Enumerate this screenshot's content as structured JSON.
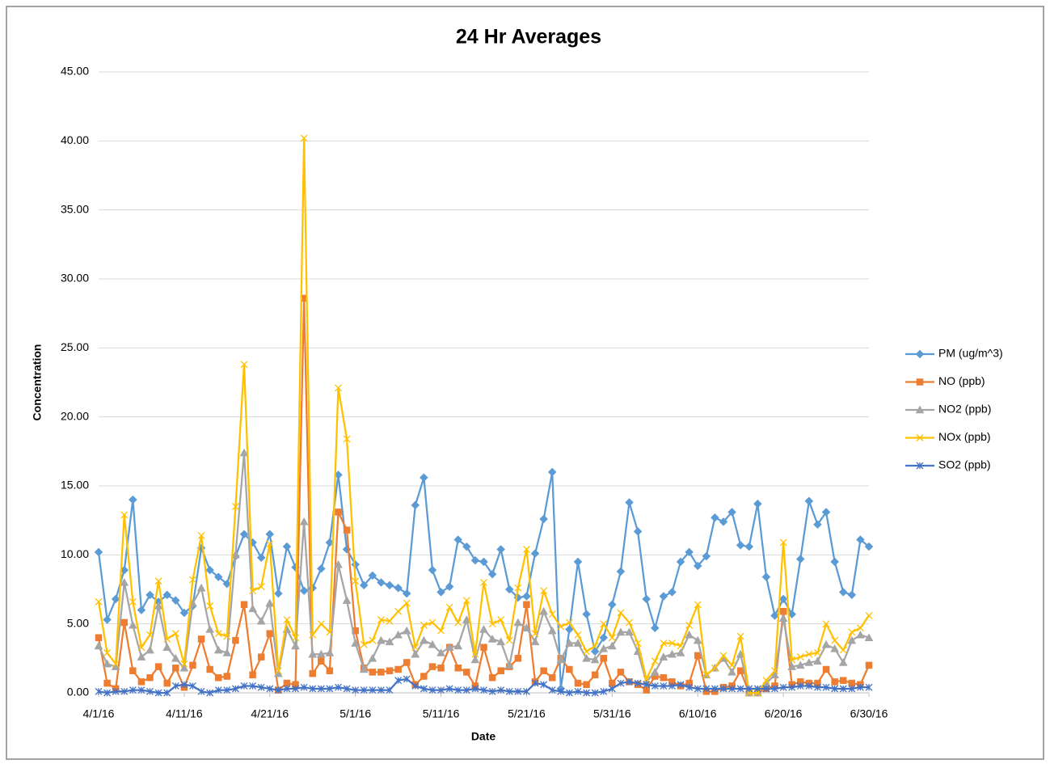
{
  "chart_data": {
    "type": "line",
    "title": "24 Hr Averages",
    "x_label": "Date",
    "y_label": "Concentration",
    "x": [
      "4/1/16",
      "4/2/16",
      "4/3/16",
      "4/4/16",
      "4/5/16",
      "4/6/16",
      "4/7/16",
      "4/8/16",
      "4/9/16",
      "4/10/16",
      "4/11/16",
      "4/12/16",
      "4/13/16",
      "4/14/16",
      "4/15/16",
      "4/16/16",
      "4/17/16",
      "4/18/16",
      "4/19/16",
      "4/20/16",
      "4/21/16",
      "4/22/16",
      "4/23/16",
      "4/24/16",
      "4/25/16",
      "4/26/16",
      "4/27/16",
      "4/28/16",
      "4/29/16",
      "4/30/16",
      "5/1/16",
      "5/2/16",
      "5/3/16",
      "5/4/16",
      "5/5/16",
      "5/6/16",
      "5/7/16",
      "5/8/16",
      "5/9/16",
      "5/10/16",
      "5/11/16",
      "5/12/16",
      "5/13/16",
      "5/14/16",
      "5/15/16",
      "5/16/16",
      "5/17/16",
      "5/18/16",
      "5/19/16",
      "5/20/16",
      "5/21/16",
      "5/22/16",
      "5/23/16",
      "5/24/16",
      "5/25/16",
      "5/26/16",
      "5/27/16",
      "5/28/16",
      "5/29/16",
      "5/30/16",
      "5/31/16",
      "6/1/16",
      "6/2/16",
      "6/3/16",
      "6/4/16",
      "6/5/16",
      "6/6/16",
      "6/7/16",
      "6/8/16",
      "6/9/16",
      "6/10/16",
      "6/11/16",
      "6/12/16",
      "6/13/16",
      "6/14/16",
      "6/15/16",
      "6/16/16",
      "6/17/16",
      "6/18/16",
      "6/19/16",
      "6/20/16",
      "6/21/16",
      "6/22/16",
      "6/23/16",
      "6/24/16",
      "6/25/16",
      "6/26/16",
      "6/27/16",
      "6/28/16",
      "6/29/16",
      "6/30/16"
    ],
    "xlim": [
      "4/1/16",
      "6/30/16"
    ],
    "xticks": [
      "4/1/16",
      "4/11/16",
      "4/21/16",
      "5/1/16",
      "5/11/16",
      "5/21/16",
      "5/31/16",
      "6/10/16",
      "6/20/16",
      "6/30/16"
    ],
    "ylim": [
      0,
      45
    ],
    "yticks": [
      {
        "value": 0,
        "label": "0.00"
      },
      {
        "value": 5,
        "label": "5.00"
      },
      {
        "value": 10,
        "label": "10.00"
      },
      {
        "value": 15,
        "label": "15.00"
      },
      {
        "value": 20,
        "label": "20.00"
      },
      {
        "value": 25,
        "label": "25.00"
      },
      {
        "value": 30,
        "label": "30.00"
      },
      {
        "value": 35,
        "label": "35.00"
      },
      {
        "value": 40,
        "label": "40.00"
      },
      {
        "value": 45,
        "label": "45.00"
      }
    ],
    "grid": true,
    "legend": "right",
    "series": [
      {
        "name": "PM (ug/m^3)",
        "color": "#5B9BD5",
        "marker": "diamond",
        "values": [
          10.2,
          5.3,
          6.8,
          8.9,
          14.0,
          6.0,
          7.1,
          6.6,
          7.1,
          6.7,
          5.8,
          6.3,
          10.5,
          8.9,
          8.4,
          7.9,
          9.9,
          11.5,
          10.9,
          9.8,
          11.5,
          7.2,
          10.6,
          9.1,
          7.4,
          7.6,
          9.0,
          10.9,
          15.8,
          10.4,
          9.3,
          7.8,
          8.5,
          8.0,
          7.8,
          7.6,
          7.2,
          13.6,
          15.6,
          8.9,
          7.3,
          7.7,
          11.1,
          10.6,
          9.6,
          9.5,
          8.6,
          10.4,
          7.5,
          6.9,
          7.0,
          10.1,
          12.6,
          16.0,
          0.3,
          4.6,
          9.5,
          5.7,
          3.0,
          4.0,
          6.4,
          8.8,
          13.8,
          11.7,
          6.8,
          4.7,
          7.0,
          7.3,
          9.5,
          10.2,
          9.2,
          9.9,
          12.7,
          12.4,
          13.1,
          10.7,
          10.6,
          13.7,
          8.4,
          5.6,
          6.8,
          5.7,
          9.7,
          13.9,
          12.2,
          13.1,
          9.5,
          7.3,
          7.1,
          11.1,
          10.6
        ]
      },
      {
        "name": "NO (ppb)",
        "color": "#ED7D31",
        "marker": "square",
        "values": [
          4.0,
          0.7,
          0.3,
          5.1,
          1.6,
          0.8,
          1.1,
          1.9,
          0.7,
          1.8,
          0.4,
          2.0,
          3.9,
          1.7,
          1.1,
          1.2,
          3.8,
          6.4,
          1.3,
          2.6,
          4.3,
          0.2,
          0.7,
          0.6,
          28.6,
          1.4,
          2.3,
          1.6,
          13.1,
          11.8,
          4.5,
          1.8,
          1.5,
          1.5,
          1.6,
          1.7,
          2.2,
          0.6,
          1.2,
          1.9,
          1.8,
          3.3,
          1.8,
          1.5,
          0.5,
          3.3,
          1.1,
          1.6,
          1.9,
          2.5,
          6.4,
          0.8,
          1.6,
          1.1,
          2.5,
          1.7,
          0.7,
          0.6,
          1.3,
          2.5,
          0.7,
          1.5,
          0.8,
          0.6,
          0.2,
          1.2,
          1.1,
          0.8,
          0.5,
          0.7,
          2.7,
          0.1,
          0.1,
          0.4,
          0.5,
          1.6,
          0.0,
          0.0,
          0.3,
          0.5,
          5.9,
          0.6,
          0.8,
          0.7,
          0.7,
          1.7,
          0.8,
          0.9,
          0.7,
          0.6,
          2.0
        ]
      },
      {
        "name": "NO2 (ppb)",
        "color": "#A5A5A5",
        "marker": "triangle",
        "values": [
          3.4,
          2.1,
          1.9,
          8.0,
          4.9,
          2.6,
          3.1,
          6.3,
          3.3,
          2.5,
          1.8,
          6.5,
          7.6,
          4.6,
          3.1,
          2.9,
          10.0,
          17.4,
          6.1,
          5.2,
          6.5,
          1.4,
          4.6,
          3.4,
          12.4,
          2.8,
          2.8,
          2.9,
          9.3,
          6.7,
          3.6,
          1.7,
          2.5,
          3.8,
          3.7,
          4.2,
          4.5,
          2.8,
          3.8,
          3.5,
          2.9,
          3.3,
          3.4,
          5.3,
          2.4,
          4.6,
          3.9,
          3.7,
          2.0,
          5.1,
          4.7,
          3.7,
          5.9,
          4.5,
          2.4,
          3.6,
          3.6,
          2.5,
          2.4,
          3.2,
          3.4,
          4.4,
          4.4,
          3.0,
          0.8,
          1.5,
          2.6,
          2.8,
          2.9,
          4.2,
          3.8,
          1.3,
          1.8,
          2.5,
          1.5,
          2.8,
          0.0,
          0.0,
          0.7,
          1.3,
          5.4,
          1.9,
          2.0,
          2.2,
          2.3,
          3.5,
          3.2,
          2.2,
          3.8,
          4.2,
          4.0
        ]
      },
      {
        "name": "NOx (ppb)",
        "color": "#FFC000",
        "marker": "x",
        "values": [
          6.6,
          2.9,
          2.1,
          12.9,
          6.6,
          3.3,
          4.2,
          8.1,
          3.9,
          4.3,
          2.1,
          8.2,
          11.4,
          6.3,
          4.3,
          4.1,
          13.5,
          23.8,
          7.4,
          7.7,
          10.8,
          1.6,
          5.3,
          4.0,
          40.2,
          4.2,
          5.0,
          4.4,
          22.1,
          18.4,
          8.1,
          3.5,
          3.8,
          5.3,
          5.2,
          5.9,
          6.5,
          3.3,
          4.9,
          5.1,
          4.5,
          6.2,
          5.1,
          6.7,
          2.8,
          8.0,
          5.0,
          5.3,
          3.8,
          7.6,
          10.4,
          4.3,
          7.4,
          5.7,
          4.8,
          5.1,
          4.2,
          3.0,
          3.4,
          5.0,
          4.0,
          5.8,
          5.1,
          3.6,
          1.0,
          2.3,
          3.6,
          3.6,
          3.4,
          4.9,
          6.4,
          1.3,
          1.8,
          2.7,
          2.0,
          4.1,
          0.0,
          0.0,
          0.9,
          1.6,
          10.9,
          2.4,
          2.6,
          2.8,
          2.9,
          5.0,
          3.8,
          3.1,
          4.4,
          4.7,
          5.6
        ]
      },
      {
        "name": "SO2 (ppb)",
        "color": "#4472C4",
        "marker": "star",
        "values": [
          0.1,
          0.0,
          0.1,
          0.1,
          0.2,
          0.2,
          0.1,
          0.0,
          0.0,
          0.5,
          0.6,
          0.5,
          0.1,
          0.0,
          0.2,
          0.2,
          0.3,
          0.5,
          0.5,
          0.4,
          0.3,
          0.2,
          0.3,
          0.3,
          0.4,
          0.3,
          0.3,
          0.3,
          0.4,
          0.3,
          0.2,
          0.2,
          0.2,
          0.2,
          0.2,
          0.9,
          1.0,
          0.5,
          0.3,
          0.2,
          0.2,
          0.3,
          0.2,
          0.2,
          0.3,
          0.2,
          0.1,
          0.2,
          0.1,
          0.1,
          0.1,
          0.7,
          0.6,
          0.2,
          0.1,
          0.0,
          0.1,
          0.0,
          0.0,
          0.1,
          0.3,
          0.7,
          0.8,
          0.7,
          0.6,
          0.5,
          0.5,
          0.5,
          0.6,
          0.4,
          0.3,
          0.3,
          0.3,
          0.3,
          0.3,
          0.3,
          0.3,
          0.3,
          0.3,
          0.3,
          0.4,
          0.4,
          0.5,
          0.5,
          0.4,
          0.4,
          0.3,
          0.3,
          0.3,
          0.4,
          0.4
        ]
      }
    ]
  }
}
